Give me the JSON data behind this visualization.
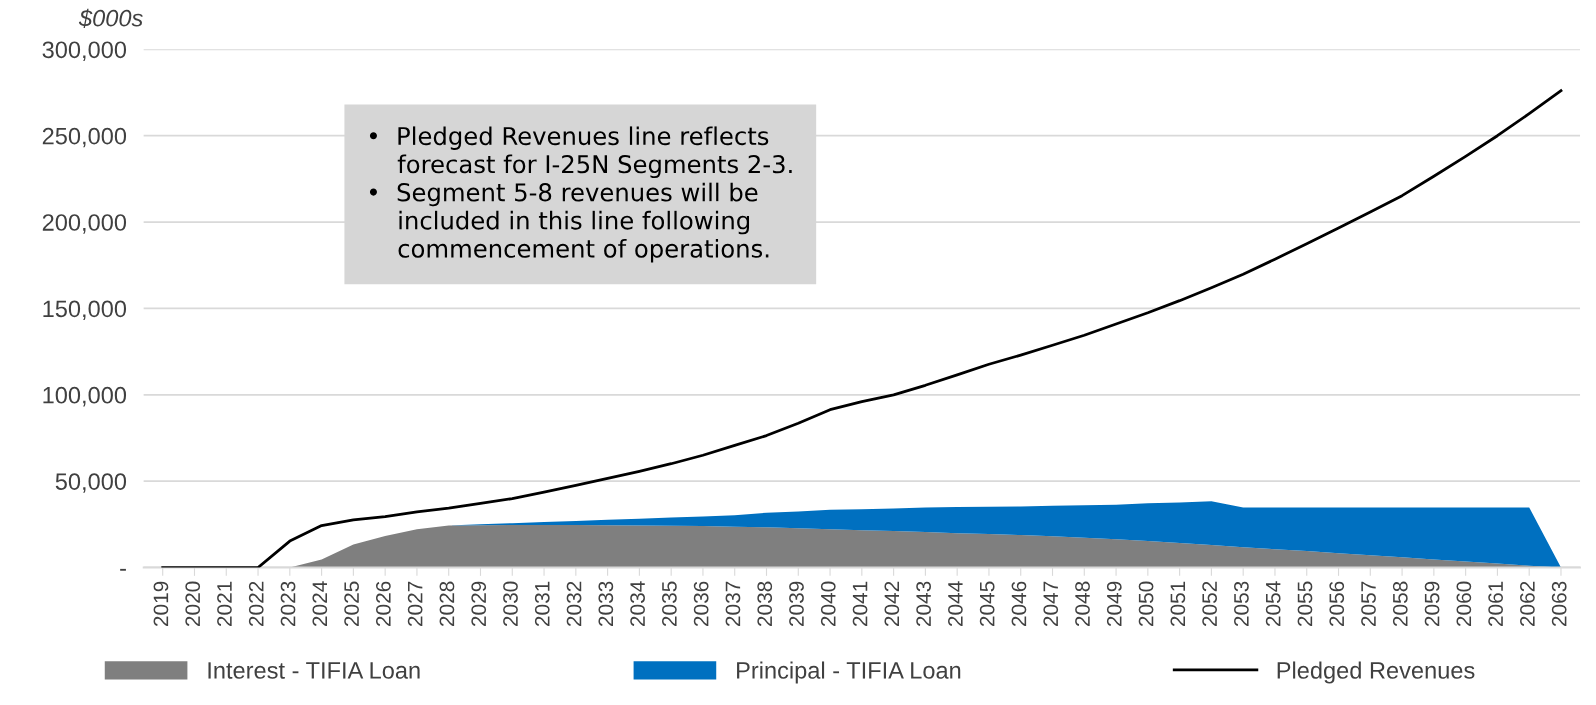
{
  "chart_data": {
    "type": "area",
    "stacked": true,
    "ylabel": "$000s",
    "categories": [
      "2019",
      "2020",
      "2021",
      "2022",
      "2023",
      "2024",
      "2025",
      "2026",
      "2027",
      "2028",
      "2029",
      "2030",
      "2031",
      "2032",
      "2033",
      "2034",
      "2035",
      "2036",
      "2037",
      "2038",
      "2039",
      "2040",
      "2041",
      "2042",
      "2043",
      "2044",
      "2045",
      "2046",
      "2047",
      "2048",
      "2049",
      "2050",
      "2051",
      "2052",
      "2053",
      "2054",
      "2055",
      "2056",
      "2057",
      "2058",
      "2059",
      "2060",
      "2061",
      "2062",
      "2063"
    ],
    "series": [
      {
        "name": "Interest - TIFIA Loan",
        "color": "#7f7f7f",
        "values": [
          0,
          0,
          0,
          0,
          0,
          4600,
          13400,
          18300,
          22100,
          24300,
          24500,
          24600,
          24600,
          24600,
          24500,
          24300,
          24200,
          24000,
          23600,
          23300,
          22800,
          22200,
          21600,
          21100,
          20500,
          19900,
          19400,
          18800,
          18100,
          17200,
          16300,
          15300,
          14200,
          13000,
          11800,
          10600,
          9500,
          8300,
          7100,
          5900,
          4700,
          3500,
          2300,
          1100,
          0
        ]
      },
      {
        "name": "Principal - TIFIA Loan",
        "color": "#0070c0",
        "values": [
          0,
          0,
          0,
          0,
          0,
          0,
          0,
          0,
          0,
          0,
          600,
          1100,
          1700,
          2400,
          3100,
          3900,
          4700,
          5600,
          6700,
          8400,
          9700,
          11300,
          12200,
          13100,
          14200,
          15100,
          15800,
          16600,
          17600,
          18800,
          20000,
          21900,
          23500,
          25400,
          23000,
          24200,
          25300,
          26500,
          27700,
          28900,
          30100,
          31300,
          32500,
          33700,
          0
        ]
      },
      {
        "name": "Pledged Revenues",
        "type": "line",
        "color": "#000000",
        "values": [
          0,
          0,
          0,
          0,
          15300,
          24300,
          27600,
          29500,
          32200,
          34400,
          37100,
          39900,
          43700,
          47500,
          51600,
          55700,
          60100,
          65000,
          70700,
          76400,
          83500,
          91400,
          96100,
          100000,
          105500,
          111500,
          117700,
          123000,
          128700,
          134500,
          141000,
          147500,
          154500,
          162000,
          169800,
          178500,
          187500,
          196500,
          205800,
          215300,
          226500,
          238000,
          250000,
          262800,
          276000
        ]
      }
    ],
    "ylim": [
      0,
      300000
    ],
    "yticks": [
      {
        "value": 0,
        "label": "-"
      },
      {
        "value": 50000,
        "label": "50,000"
      },
      {
        "value": 100000,
        "label": "100,000"
      },
      {
        "value": 150000,
        "label": "150,000"
      },
      {
        "value": 200000,
        "label": "200,000"
      },
      {
        "value": 250000,
        "label": "250,000"
      },
      {
        "value": 300000,
        "label": "300,000"
      }
    ],
    "grid": "y",
    "legend": "bottom",
    "annotations": [
      "•  Pledged Revenues line reflects\n    forecast for I-25N Segments 2-3.\n•  Segment 5-8 revenues will be\n    included in this line following\n    commencement of operations."
    ]
  }
}
